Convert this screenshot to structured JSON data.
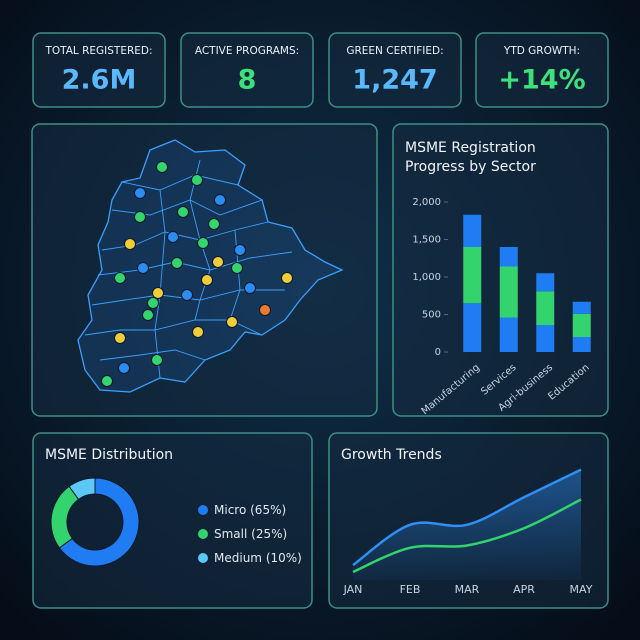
{
  "kpis": [
    {
      "label": "TOTAL REGISTERED:",
      "value": "2.6M"
    },
    {
      "label": "ACTIVE PROGRAMS:",
      "value": "8"
    },
    {
      "label": "GREEN CERTIFIED:",
      "value": "1,247"
    },
    {
      "label": "YTD GROWTH:",
      "value": "+14%"
    }
  ],
  "chart_data": [
    {
      "type": "bar",
      "stacked": true,
      "title": "MSME Registration Progress by Sector",
      "categories": [
        "Manufacturing",
        "Services",
        "Agri-business",
        "Education"
      ],
      "series": [
        {
          "color": "#1f7cf2",
          "values": [
            650,
            460,
            360,
            200
          ]
        },
        {
          "color": "#33d46e",
          "values": [
            750,
            680,
            450,
            310
          ]
        },
        {
          "color": "#1f7cf2",
          "values": [
            430,
            260,
            240,
            160
          ]
        }
      ],
      "ylim": [
        0,
        2000
      ],
      "yticks": [
        0,
        500,
        {
          "value": 1000,
          "label": "1,000"
        },
        {
          "value": 1500,
          "label": "1,500"
        },
        {
          "value": 2000,
          "label": "2,000"
        }
      ]
    },
    {
      "type": "pie",
      "donut": true,
      "title": "MSME Distribution",
      "categories": [
        "Micro",
        "Small",
        "Medium"
      ],
      "values": [
        65,
        25,
        10
      ],
      "value_labels": [
        "(65%)",
        "(25%)",
        "(10%)"
      ],
      "colors": [
        "#1f7cf2",
        "#33d46e",
        "#5cc8f5"
      ]
    },
    {
      "type": "line",
      "title": "Growth Trends",
      "categories": [
        "JAN",
        "FEB",
        "MAR",
        "APR",
        "MAY"
      ],
      "series": [
        {
          "color": "#2f8ff5",
          "values": [
            13,
            48,
            48,
            72,
            96
          ],
          "area": true
        },
        {
          "color": "#33d46e",
          "values": [
            7,
            28,
            30,
            45,
            70
          ]
        }
      ],
      "ylim": [
        0,
        100
      ]
    }
  ]
}
